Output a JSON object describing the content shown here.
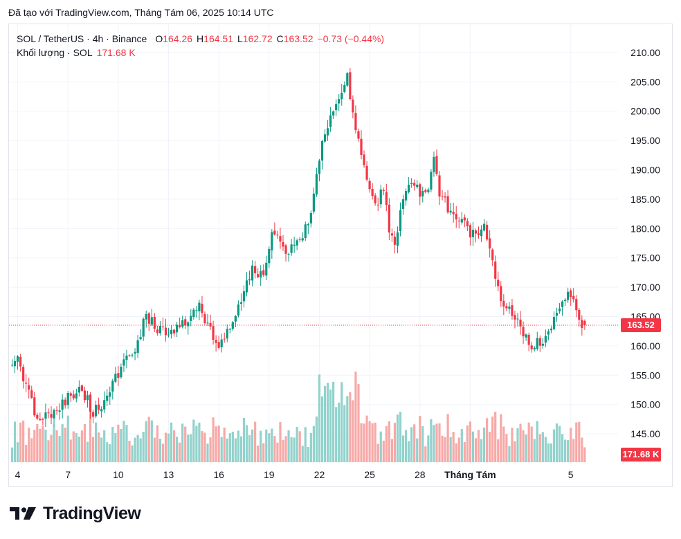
{
  "header": {
    "published": "Đã tạo với TradingView.com, Tháng Tám 06, 2025 10:14 UTC"
  },
  "legend": {
    "symbol": "SOL / TetherUS · 4h · Binance",
    "o_label": "O",
    "o_value": "164.26",
    "h_label": "H",
    "h_value": "164.51",
    "l_label": "L",
    "l_value": "162.72",
    "c_label": "C",
    "c_value": "163.52",
    "change": "−0.73 (−0.44%)",
    "volume_label": "Khối lượng · SOL",
    "volume_value": "171.68 K"
  },
  "price_tag": "163.52",
  "volume_tag": "171.68 K",
  "logo_text": "TradingView",
  "colors": {
    "up": "#089981",
    "down": "#f23645",
    "vol_up": "#92d2cc",
    "vol_down": "#f7a9a7",
    "grid": "#f0f3fa",
    "text": "#131722",
    "tag_up": "#f23645"
  },
  "chart_data": {
    "type": "candlestick",
    "symbol": "SOL / TetherUS",
    "interval": "4h",
    "exchange": "Binance",
    "y_axis": {
      "range": [
        141,
        212
      ],
      "ticks": [
        "145.00",
        "150.00",
        "155.00",
        "160.00",
        "165.00",
        "170.00",
        "175.00",
        "180.00",
        "185.00",
        "190.00",
        "195.00",
        "200.00",
        "205.00",
        "210.00"
      ]
    },
    "x_axis": {
      "ticks": [
        {
          "label": "4",
          "bar": 2
        },
        {
          "label": "7",
          "bar": 20
        },
        {
          "label": "10",
          "bar": 38
        },
        {
          "label": "13",
          "bar": 56
        },
        {
          "label": "16",
          "bar": 74
        },
        {
          "label": "19",
          "bar": 92
        },
        {
          "label": "22",
          "bar": 110
        },
        {
          "label": "25",
          "bar": 128
        },
        {
          "label": "28",
          "bar": 146
        },
        {
          "label": "Tháng Tám",
          "bar": 164
        },
        {
          "label": "5",
          "bar": 200
        }
      ]
    },
    "last_price": 163.52,
    "close_path_keypoints": [
      [
        0,
        156.0
      ],
      [
        2,
        157.2
      ],
      [
        5,
        153.5
      ],
      [
        9,
        147.5
      ],
      [
        13,
        147.8
      ],
      [
        16,
        149.0
      ],
      [
        20,
        151.0
      ],
      [
        25,
        152.5
      ],
      [
        29,
        148.5
      ],
      [
        32,
        150.0
      ],
      [
        36,
        154.0
      ],
      [
        41,
        157.3
      ],
      [
        45,
        160.0
      ],
      [
        48,
        165.5
      ],
      [
        52,
        163.0
      ],
      [
        56,
        161.5
      ],
      [
        60,
        163.0
      ],
      [
        63,
        164.5
      ],
      [
        67,
        167.5
      ],
      [
        70,
        163.0
      ],
      [
        74,
        160.0
      ],
      [
        78,
        163.0
      ],
      [
        82,
        167.5
      ],
      [
        86,
        173.5
      ],
      [
        90,
        172.0
      ],
      [
        93,
        180.0
      ],
      [
        96,
        177.0
      ],
      [
        99,
        176.5
      ],
      [
        102,
        177.0
      ],
      [
        106,
        180.5
      ],
      [
        108,
        187.0
      ],
      [
        112,
        197.0
      ],
      [
        116,
        200.5
      ],
      [
        120,
        205.5
      ],
      [
        122,
        199.0
      ],
      [
        125,
        193.0
      ],
      [
        127,
        188.0
      ],
      [
        130,
        184.0
      ],
      [
        133,
        187.0
      ],
      [
        135,
        179.5
      ],
      [
        137,
        176.5
      ],
      [
        140,
        186.0
      ],
      [
        142,
        188.0
      ],
      [
        145,
        186.5
      ],
      [
        149,
        186.0
      ],
      [
        151,
        192.5
      ],
      [
        153,
        186.0
      ],
      [
        157,
        182.5
      ],
      [
        161,
        181.0
      ],
      [
        165,
        179.0
      ],
      [
        169,
        180.5
      ],
      [
        172,
        174.0
      ],
      [
        175,
        168.0
      ],
      [
        178,
        166.0
      ],
      [
        182,
        163.0
      ],
      [
        186,
        159.0
      ],
      [
        189,
        161.0
      ],
      [
        193,
        162.5
      ],
      [
        196,
        167.0
      ],
      [
        199,
        169.5
      ],
      [
        201,
        168.0
      ],
      [
        203,
        163.5
      ],
      [
        205,
        163.5
      ]
    ],
    "volume_range_k": [
      0,
      1300
    ],
    "volume_label_last": "171.68 K",
    "ohlc_last": {
      "open": 164.26,
      "high": 164.51,
      "low": 162.72,
      "close": 163.52,
      "change": -0.73,
      "change_pct": -0.44
    }
  }
}
